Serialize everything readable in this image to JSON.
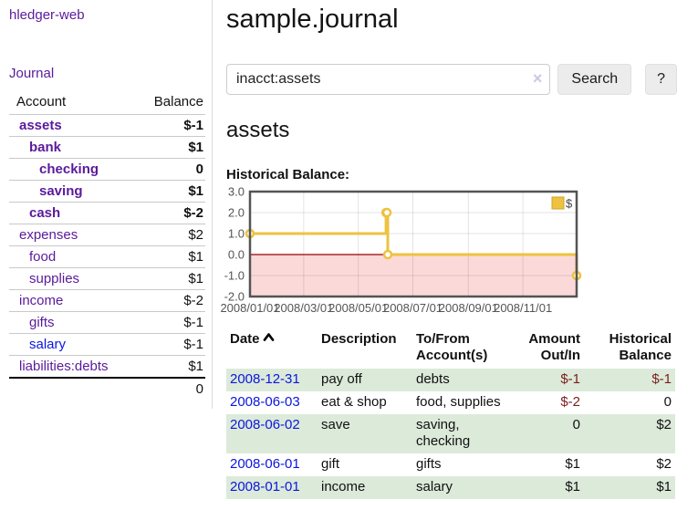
{
  "app": {
    "title": "hledger-web",
    "nav_journal": "Journal"
  },
  "sidebar": {
    "accounts_header": {
      "account": "Account",
      "balance": "Balance"
    },
    "accounts": [
      {
        "name": "assets",
        "balance": "$-1",
        "indent": 1,
        "bold": true,
        "balance_class": "neg-strong"
      },
      {
        "name": "bank",
        "balance": "$1",
        "indent": 2,
        "bold": true,
        "balance_class": ""
      },
      {
        "name": "checking",
        "balance": "0",
        "indent": 3,
        "bold": true,
        "balance_class": ""
      },
      {
        "name": "saving",
        "balance": "$1",
        "indent": 3,
        "bold": true,
        "balance_class": ""
      },
      {
        "name": "cash",
        "balance": "$-2",
        "indent": 2,
        "bold": true,
        "balance_class": "neg-strong"
      },
      {
        "name": "expenses",
        "balance": "$2",
        "indent": 1,
        "bold": false,
        "balance_class": ""
      },
      {
        "name": "food",
        "balance": "$1",
        "indent": 2,
        "bold": false,
        "balance_class": ""
      },
      {
        "name": "supplies",
        "balance": "$1",
        "indent": 2,
        "bold": false,
        "balance_class": ""
      },
      {
        "name": "income",
        "balance": "$-2",
        "indent": 1,
        "bold": false,
        "balance_class": "neg-soft"
      },
      {
        "name": "gifts",
        "balance": "$-1",
        "indent": 2,
        "bold": false,
        "balance_class": "neg-soft"
      },
      {
        "name": "salary",
        "balance": "$-1",
        "indent": 2,
        "bold": false,
        "balance_class": "neg-soft",
        "link_color": "blue"
      },
      {
        "name": "liabilities:debts",
        "balance": "$1",
        "indent": 1,
        "bold": false,
        "balance_class": ""
      }
    ],
    "total": "0"
  },
  "header": {
    "title": "sample.journal"
  },
  "search": {
    "query": "inacct:assets",
    "clear_icon": "×",
    "button_label": "Search",
    "help_label": "?"
  },
  "account_page": {
    "title": "assets",
    "chart_label": "Historical Balance:"
  },
  "chart_data": {
    "type": "line",
    "title": "Historical Balance",
    "step": true,
    "series": [
      {
        "name": "$",
        "color": "#edc240",
        "points": [
          [
            "2008-01-01",
            1
          ],
          [
            "2008-06-01",
            2
          ],
          [
            "2008-06-02",
            2
          ],
          [
            "2008-06-03",
            0
          ],
          [
            "2008-12-31",
            -1
          ]
        ]
      }
    ],
    "xlim": [
      "2008-01-01",
      "2008-12-31"
    ],
    "ylim": [
      -2,
      3
    ],
    "x_ticks": [
      "2008/01/01",
      "2008/03/01",
      "2008/05/01",
      "2008/07/01",
      "2008/09/01",
      "2008/11/01"
    ],
    "y_ticks": [
      3,
      2,
      1,
      0,
      -1,
      -2
    ],
    "legend": {
      "label": "$",
      "position": "top-right"
    },
    "grid": true,
    "negative_region_color": "#fbd9d9",
    "zero_line_color": "#990000",
    "border_color": "#545454",
    "tick_label_color": "#545454"
  },
  "register": {
    "columns": [
      "Date",
      "Description",
      "To/From Account(s)",
      "Amount Out/In",
      "Historical Balance"
    ],
    "sort": "date-ascending-arrow",
    "rows": [
      {
        "date": "2008-12-31",
        "description": "pay off",
        "accounts": "debts",
        "amount": "$-1",
        "balance": "$-1"
      },
      {
        "date": "2008-06-03",
        "description": "eat & shop",
        "accounts": "food, supplies",
        "amount": "$-2",
        "balance": "0"
      },
      {
        "date": "2008-06-02",
        "description": "save",
        "accounts": "saving, checking",
        "amount": "0",
        "balance": "$2"
      },
      {
        "date": "2008-06-01",
        "description": "gift",
        "accounts": "gifts",
        "amount": "$1",
        "balance": "$2"
      },
      {
        "date": "2008-01-01",
        "description": "income",
        "accounts": "salary",
        "amount": "$1",
        "balance": "$1"
      }
    ]
  }
}
